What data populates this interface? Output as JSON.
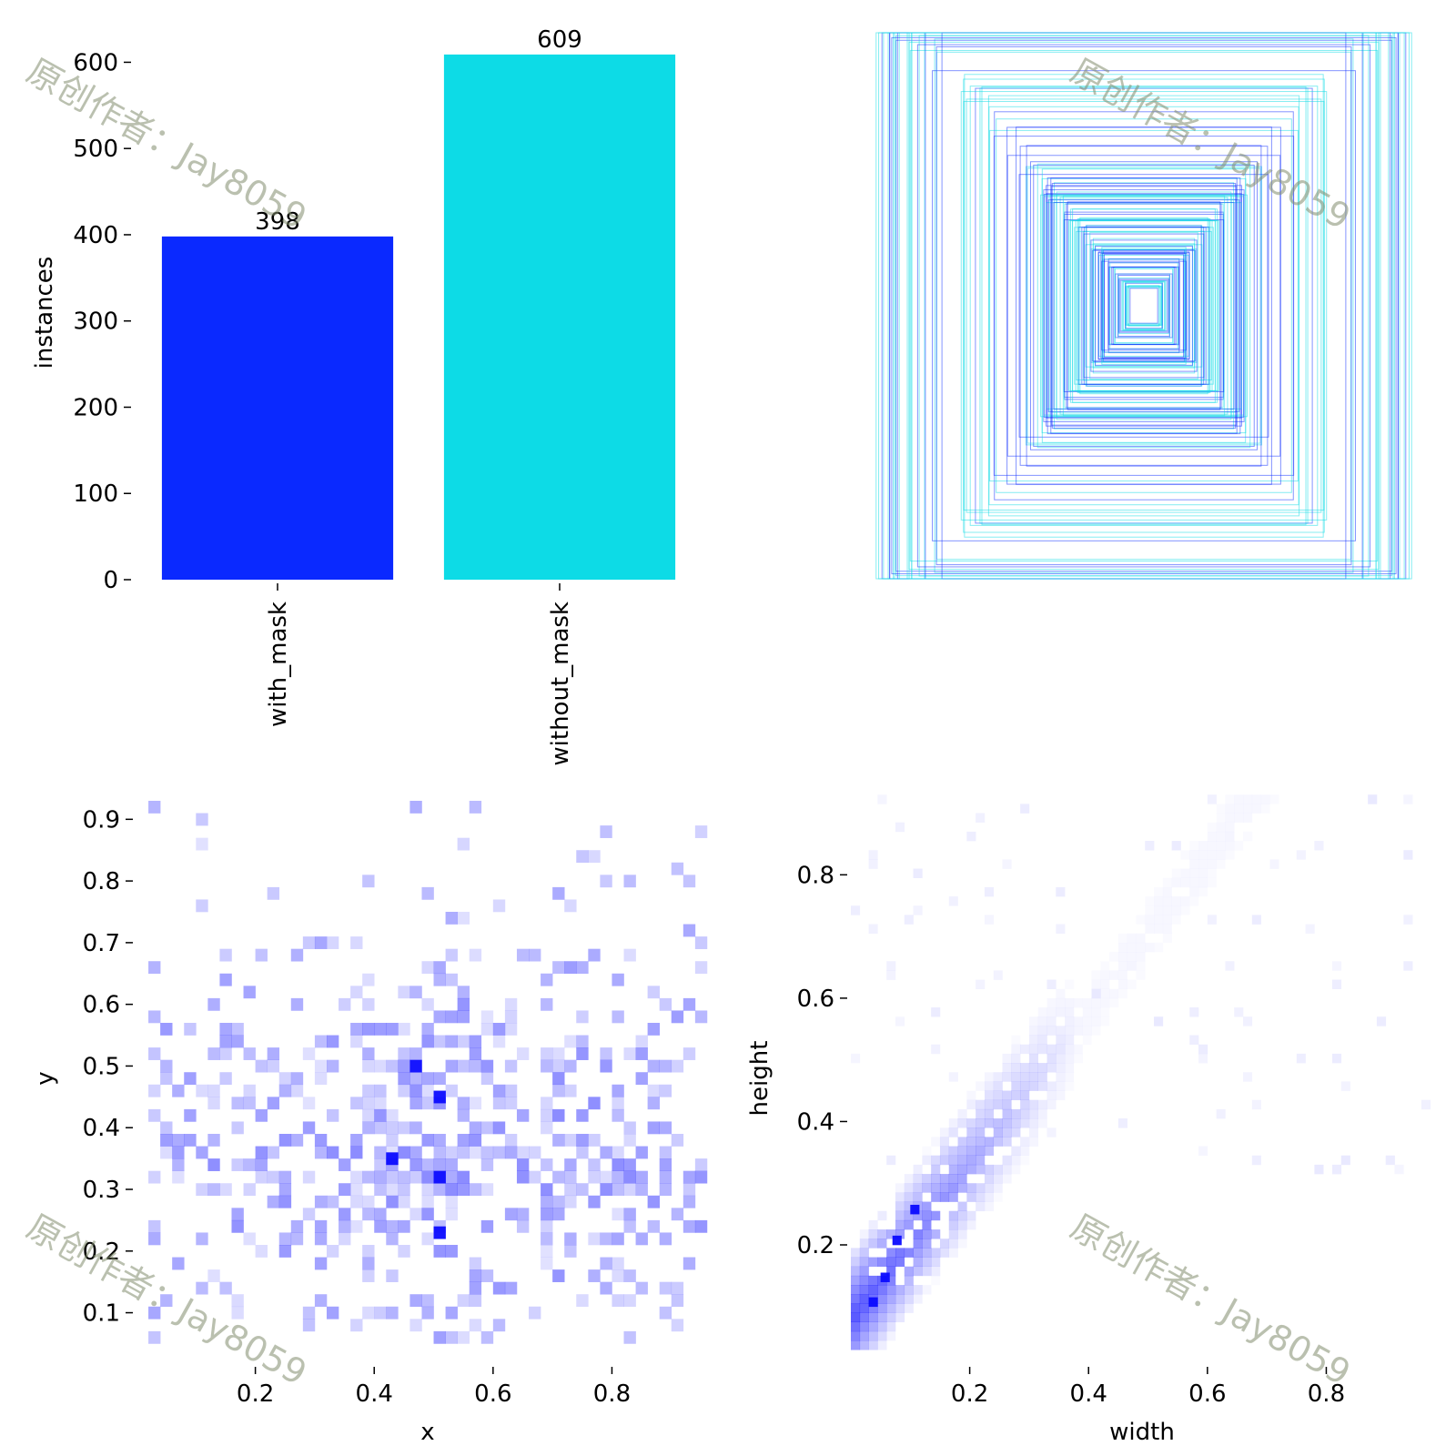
{
  "watermark": "原创作者：Jay8059",
  "chart_data": [
    {
      "type": "bar",
      "panel": "top-left",
      "categories": [
        "with_mask",
        "without_mask"
      ],
      "values": [
        398,
        609
      ],
      "data_labels": [
        "398",
        "609"
      ],
      "ylabel": "instances",
      "ylim": [
        0,
        630
      ],
      "yticks": [
        0,
        100,
        200,
        300,
        400,
        500,
        600
      ],
      "colors": [
        "#0a29ff",
        "#0ddbe6"
      ],
      "grid": false
    },
    {
      "type": "box-overlay",
      "panel": "top-right",
      "description_colors": [
        "#0a29ff",
        "#0ddbe6"
      ],
      "axes_visible": false
    },
    {
      "type": "heatmap",
      "panel": "bottom-left",
      "xlabel": "x",
      "ylabel": "y",
      "xticks": [
        0.2,
        0.4,
        0.6,
        0.8
      ],
      "yticks": [
        0.1,
        0.2,
        0.3,
        0.4,
        0.5,
        0.6,
        0.7,
        0.8,
        0.9
      ],
      "xlim": [
        0.0,
        0.98
      ],
      "ylim": [
        0.03,
        0.93
      ],
      "color": "#0a0aff",
      "peak_cells": [
        [
          0.5,
          0.44
        ],
        [
          0.42,
          0.34
        ],
        [
          0.5,
          0.22
        ],
        [
          0.5,
          0.31
        ],
        [
          0.46,
          0.49
        ]
      ]
    },
    {
      "type": "heatmap",
      "panel": "bottom-right",
      "xlabel": "width",
      "ylabel": "height",
      "xticks": [
        0.2,
        0.4,
        0.6,
        0.8
      ],
      "yticks": [
        0.2,
        0.4,
        0.6,
        0.8
      ],
      "xlim": [
        0.0,
        0.98
      ],
      "ylim": [
        0.02,
        0.92
      ],
      "color": "#0a0aff",
      "peak_cells": [
        [
          0.05,
          0.14
        ],
        [
          0.03,
          0.1
        ],
        [
          0.07,
          0.2
        ],
        [
          0.1,
          0.25
        ]
      ]
    }
  ]
}
